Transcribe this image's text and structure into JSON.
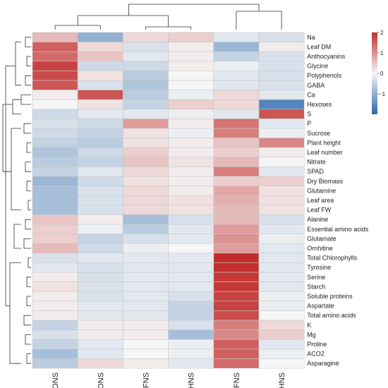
{
  "chart_data": {
    "type": "heatmap",
    "columns": [
      "C-ONS",
      "PE-ONS",
      "C-FNS",
      "C-HNS",
      "PE-FNS",
      "PE-HNS"
    ],
    "rows": [
      "Na",
      "Leaf DM",
      "Anthocyanins",
      "Glycine",
      "Polyphenols",
      "GABA",
      "Ca",
      "Hexoses",
      "S",
      "P",
      "Sucrose",
      "Plant height",
      "Leaf number",
      "Nitrate",
      "SPAD",
      "Dry Biomass",
      "Glutamine",
      "Leaf area",
      "Leaf FW",
      "Alanine",
      "Essential amino acids",
      "Glutamate",
      "Ornhitine",
      "Total Chlorophylls",
      "Tyrosine",
      "Serine",
      "Starch",
      "Soluble proteins",
      "Aspartate",
      "Total amino acids",
      "K",
      "Mg",
      "Proline",
      "ACO2",
      "Asparagine"
    ],
    "values": [
      [
        0.6,
        -1.0,
        0.3,
        0.4,
        -0.2,
        -0.3
      ],
      [
        1.5,
        0.3,
        -0.3,
        0.1,
        -0.9,
        0.1
      ],
      [
        1.4,
        0.5,
        -0.2,
        0.1,
        -0.5,
        -0.3
      ],
      [
        1.8,
        -0.4,
        -0.4,
        0.1,
        -0.1,
        -0.3
      ],
      [
        1.7,
        0.2,
        -0.6,
        0.0,
        -0.2,
        -0.3
      ],
      [
        1.6,
        -0.3,
        -0.7,
        0.0,
        -0.2,
        -0.3
      ],
      [
        0.1,
        1.6,
        -0.6,
        -0.1,
        0.3,
        -0.2
      ],
      [
        0.0,
        0.2,
        -0.5,
        0.4,
        0.3,
        -1.6
      ],
      [
        -0.4,
        -0.2,
        -0.2,
        -0.1,
        -0.2,
        1.6
      ],
      [
        -0.3,
        -0.4,
        0.9,
        0.1,
        1.3,
        -0.2
      ],
      [
        -0.4,
        -0.5,
        0.2,
        -0.1,
        1.2,
        -0.1
      ],
      [
        -0.5,
        -0.6,
        0.2,
        0.1,
        0.5,
        1.1
      ],
      [
        -0.7,
        -0.4,
        0.4,
        0.1,
        0.4,
        0.1
      ],
      [
        -0.6,
        -0.5,
        0.5,
        0.2,
        0.6,
        0.0
      ],
      [
        -0.5,
        -0.2,
        0.3,
        0.1,
        1.2,
        -0.2
      ],
      [
        -0.9,
        -0.4,
        0.2,
        0.1,
        0.4,
        0.4
      ],
      [
        -0.8,
        -0.3,
        0.3,
        0.1,
        0.8,
        0.2
      ],
      [
        -0.8,
        -0.3,
        0.3,
        0.2,
        0.7,
        0.2
      ],
      [
        -0.8,
        -0.3,
        0.3,
        0.2,
        0.6,
        0.2
      ],
      [
        0.5,
        0.1,
        -0.8,
        -0.3,
        0.6,
        -0.3
      ],
      [
        0.4,
        -0.1,
        -0.6,
        -0.2,
        0.9,
        -0.2
      ],
      [
        0.4,
        -0.5,
        -0.3,
        -0.2,
        1.0,
        -0.1
      ],
      [
        0.6,
        -0.4,
        -0.1,
        0.0,
        0.9,
        -0.2
      ],
      [
        -0.3,
        -0.2,
        -0.2,
        -0.2,
        2.0,
        -0.2
      ],
      [
        -0.2,
        -0.3,
        -0.2,
        -0.2,
        2.0,
        -0.2
      ],
      [
        0.1,
        -0.3,
        -0.2,
        -0.2,
        1.9,
        -0.2
      ],
      [
        0.2,
        -0.3,
        -0.2,
        -0.2,
        1.9,
        -0.2
      ],
      [
        0.1,
        -0.3,
        -0.2,
        -0.3,
        1.8,
        -0.1
      ],
      [
        0.1,
        -0.2,
        -0.2,
        -0.5,
        1.8,
        -0.1
      ],
      [
        0.1,
        -0.2,
        -0.2,
        -0.5,
        1.7,
        0.0
      ],
      [
        -0.5,
        0.1,
        0.1,
        -0.3,
        1.2,
        0.3
      ],
      [
        -0.3,
        0.1,
        0.1,
        -0.8,
        1.1,
        0.4
      ],
      [
        -0.5,
        -0.2,
        0.0,
        -0.1,
        1.5,
        -0.2
      ],
      [
        -0.8,
        -0.2,
        0.0,
        -0.1,
        1.5,
        -0.1
      ],
      [
        -0.6,
        0.3,
        0.1,
        -0.2,
        1.4,
        0.0
      ]
    ],
    "legend": {
      "ticks": [
        2,
        1,
        0,
        -1
      ],
      "range": [
        -2,
        2
      ],
      "placement": "top-right"
    },
    "colors": {
      "low": "#2c69ad",
      "mid": "#f6f6f6",
      "high": "#c22e2c"
    }
  }
}
